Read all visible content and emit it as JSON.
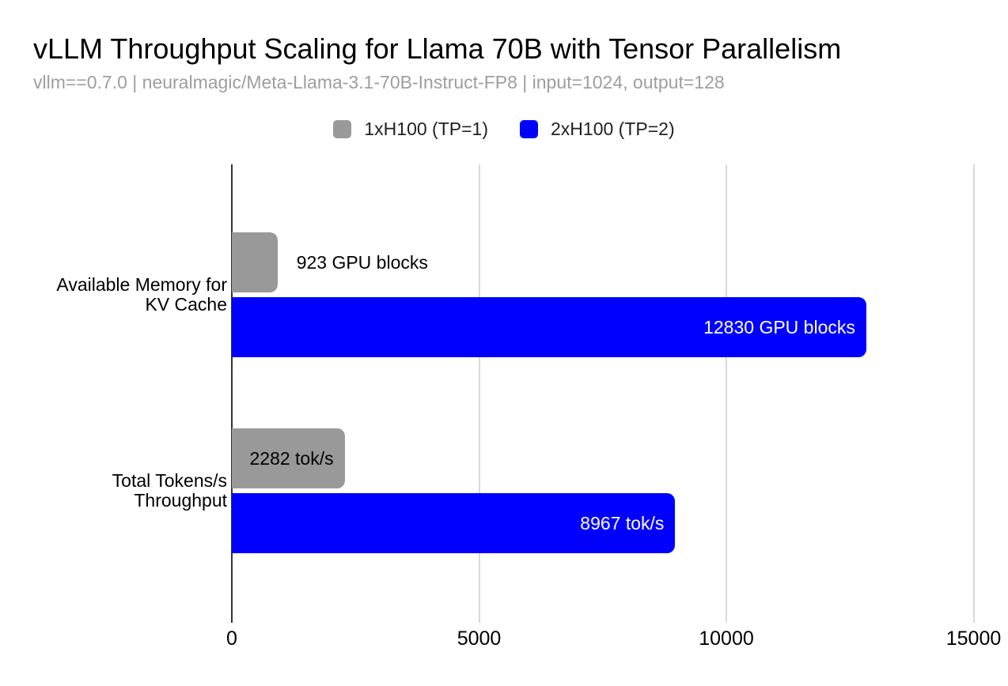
{
  "chart_data": {
    "type": "bar",
    "orientation": "horizontal",
    "title": "vLLM Throughput Scaling for Llama 70B with Tensor Parallelism",
    "subtitle": "vllm==0.7.0 | neuralmagic/Meta-Llama-3.1-70B-Instruct-FP8 | input=1024, output=128",
    "categories": [
      "Available Memory for KV Cache",
      "Total Tokens/s Throughput"
    ],
    "category_label_lines": [
      [
        "Available Memory for",
        "KV Cache"
      ],
      [
        "Total Tokens/s",
        "Throughput"
      ]
    ],
    "series": [
      {
        "name": "1xH100 (TP=1)",
        "color": "#999999",
        "values": [
          923,
          2282
        ],
        "data_labels": [
          "923 GPU blocks",
          "2282 tok/s"
        ],
        "label_placement": [
          "outside",
          "inside"
        ],
        "label_color": "#000000"
      },
      {
        "name": "2xH100 (TP=2)",
        "color": "#0000ff",
        "values": [
          12830,
          8967
        ],
        "data_labels": [
          "12830 GPU blocks",
          "8967 tok/s"
        ],
        "label_placement": [
          "inside",
          "inside"
        ],
        "label_color": "#ffffff"
      }
    ],
    "x_axis": {
      "min": 0,
      "max": 15000,
      "ticks": [
        0,
        5000,
        10000,
        15000
      ],
      "tick_labels": [
        "0",
        "5000",
        "10000",
        "15000"
      ]
    },
    "grid": true,
    "legend_position": "top-center",
    "axis_line_color": "#333333",
    "grid_line_color": "#dadada",
    "title_color": "#000000",
    "subtitle_color": "#9e9e9e"
  }
}
